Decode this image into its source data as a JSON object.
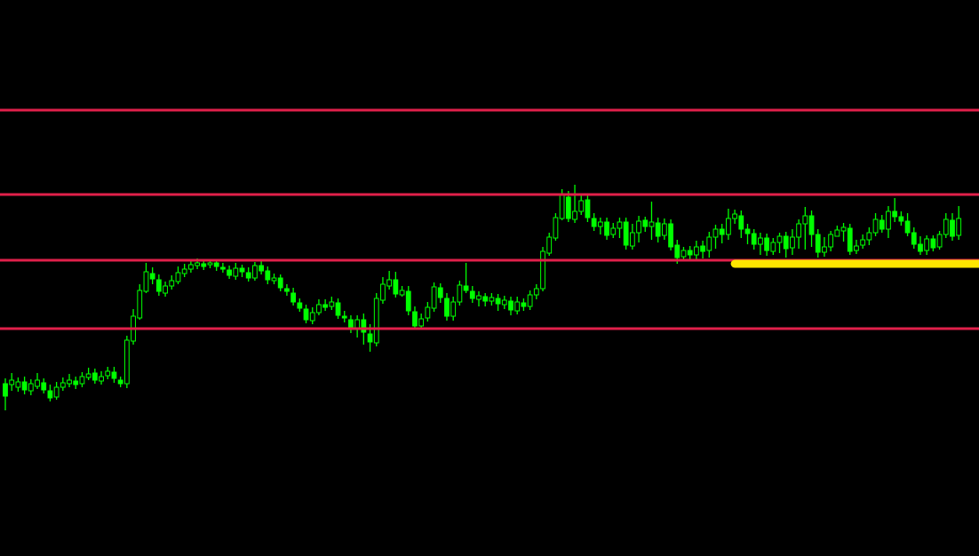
{
  "theme": {
    "background": "#000000",
    "candle_color": "#00ff00",
    "level_line_color": "#e0204a",
    "zone_color": "#ffe600"
  },
  "chart_data": {
    "type": "candlestick",
    "title": "",
    "xlabel": "",
    "ylabel": "",
    "grid": false,
    "legend": "none",
    "ylim": [
      0,
      626
    ],
    "xlim": [
      0,
      153
    ],
    "candles": [
      [
        432,
        446,
        426,
        462
      ],
      [
        433,
        428,
        420,
        440
      ],
      [
        436,
        430,
        425,
        441
      ],
      [
        430,
        439,
        424,
        444
      ],
      [
        440,
        432,
        427,
        445
      ],
      [
        435,
        428,
        420,
        438
      ],
      [
        431,
        439,
        426,
        443
      ],
      [
        440,
        448,
        433,
        452
      ],
      [
        447,
        436,
        430,
        450
      ],
      [
        436,
        431,
        425,
        440
      ],
      [
        432,
        428,
        421,
        436
      ],
      [
        429,
        433,
        424,
        438
      ],
      [
        432,
        424,
        419,
        436
      ],
      [
        425,
        421,
        414,
        428
      ],
      [
        420,
        428,
        415,
        432
      ],
      [
        429,
        424,
        418,
        433
      ],
      [
        423,
        418,
        413,
        427
      ],
      [
        419,
        426,
        413,
        431
      ],
      [
        428,
        432,
        424,
        436
      ],
      [
        432,
        383,
        378,
        437
      ],
      [
        384,
        356,
        348,
        388
      ],
      [
        358,
        327,
        320,
        360
      ],
      [
        328,
        306,
        296,
        330
      ],
      [
        308,
        314,
        301,
        320
      ],
      [
        315,
        328,
        309,
        333
      ],
      [
        330,
        322,
        317,
        334
      ],
      [
        322,
        316,
        310,
        326
      ],
      [
        317,
        307,
        300,
        320
      ],
      [
        308,
        303,
        297,
        312
      ],
      [
        303,
        298,
        293,
        307
      ],
      [
        299,
        296,
        291,
        303
      ],
      [
        297,
        300,
        293,
        304
      ],
      [
        298,
        296,
        292,
        302
      ],
      [
        296,
        300,
        292,
        305
      ],
      [
        301,
        303,
        296,
        307
      ],
      [
        304,
        310,
        299,
        314
      ],
      [
        311,
        302,
        296,
        315
      ],
      [
        302,
        306,
        298,
        312
      ],
      [
        307,
        313,
        301,
        317
      ],
      [
        313,
        299,
        295,
        316
      ],
      [
        299,
        305,
        294,
        309
      ],
      [
        305,
        315,
        300,
        320
      ],
      [
        316,
        313,
        308,
        320
      ],
      [
        313,
        324,
        309,
        328
      ],
      [
        325,
        328,
        320,
        333
      ],
      [
        330,
        340,
        324,
        344
      ],
      [
        341,
        347,
        336,
        351
      ],
      [
        348,
        360,
        343,
        364
      ],
      [
        361,
        352,
        346,
        365
      ],
      [
        352,
        343,
        337,
        355
      ],
      [
        343,
        346,
        337,
        350
      ],
      [
        345,
        340,
        334,
        349
      ],
      [
        341,
        355,
        336,
        359
      ],
      [
        356,
        358,
        350,
        363
      ],
      [
        360,
        370,
        355,
        375
      ],
      [
        371,
        360,
        355,
        380
      ],
      [
        360,
        374,
        353,
        388
      ],
      [
        376,
        385,
        365,
        396
      ],
      [
        386,
        336,
        330,
        390
      ],
      [
        338,
        320,
        312,
        342
      ],
      [
        322,
        315,
        305,
        326
      ],
      [
        315,
        331,
        306,
        335
      ],
      [
        332,
        327,
        322,
        334
      ],
      [
        328,
        350,
        322,
        355
      ],
      [
        351,
        367,
        345,
        371
      ],
      [
        367,
        359,
        353,
        370
      ],
      [
        358,
        346,
        340,
        362
      ],
      [
        347,
        323,
        318,
        351
      ],
      [
        324,
        335,
        319,
        341
      ],
      [
        336,
        356,
        330,
        361
      ],
      [
        356,
        340,
        334,
        361
      ],
      [
        340,
        321,
        316,
        344
      ],
      [
        322,
        327,
        296,
        330
      ],
      [
        328,
        336,
        322,
        341
      ],
      [
        337,
        333,
        328,
        345
      ],
      [
        334,
        339,
        330,
        345
      ],
      [
        339,
        335,
        330,
        344
      ],
      [
        336,
        342,
        331,
        350
      ],
      [
        343,
        338,
        333,
        348
      ],
      [
        339,
        349,
        334,
        355
      ],
      [
        350,
        340,
        334,
        354
      ],
      [
        341,
        345,
        336,
        350
      ],
      [
        345,
        332,
        327,
        349
      ],
      [
        332,
        325,
        320,
        337
      ],
      [
        325,
        283,
        278,
        328
      ],
      [
        285,
        267,
        262,
        288
      ],
      [
        268,
        245,
        240,
        271
      ],
      [
        246,
        220,
        213,
        248
      ],
      [
        222,
        246,
        215,
        250
      ],
      [
        247,
        238,
        208,
        251
      ],
      [
        238,
        226,
        220,
        242
      ],
      [
        225,
        245,
        219,
        250
      ],
      [
        246,
        255,
        240,
        260
      ],
      [
        255,
        250,
        245,
        264
      ],
      [
        250,
        265,
        245,
        270
      ],
      [
        264,
        257,
        251,
        268
      ],
      [
        257,
        250,
        245,
        268
      ],
      [
        250,
        276,
        245,
        281
      ],
      [
        277,
        262,
        252,
        281
      ],
      [
        262,
        249,
        243,
        273
      ],
      [
        248,
        255,
        244,
        261
      ],
      [
        255,
        250,
        227,
        270
      ],
      [
        251,
        266,
        245,
        273
      ],
      [
        265,
        252,
        246,
        270
      ],
      [
        252,
        278,
        247,
        282
      ],
      [
        276,
        290,
        270,
        297
      ],
      [
        289,
        282,
        278,
        292
      ],
      [
        282,
        287,
        277,
        292
      ],
      [
        287,
        278,
        271,
        293
      ],
      [
        277,
        283,
        271,
        291
      ],
      [
        282,
        267,
        261,
        290
      ],
      [
        267,
        258,
        253,
        280
      ],
      [
        258,
        264,
        252,
        274
      ],
      [
        264,
        246,
        235,
        270
      ],
      [
        246,
        241,
        236,
        252
      ],
      [
        243,
        258,
        237,
        268
      ],
      [
        258,
        263,
        252,
        275
      ],
      [
        263,
        275,
        258,
        281
      ],
      [
        275,
        268,
        262,
        287
      ],
      [
        268,
        282,
        263,
        288
      ],
      [
        283,
        273,
        268,
        287
      ],
      [
        273,
        266,
        262,
        285
      ],
      [
        266,
        280,
        261,
        290
      ],
      [
        279,
        267,
        258,
        287
      ],
      [
        267,
        252,
        247,
        280
      ],
      [
        252,
        243,
        233,
        281
      ],
      [
        243,
        264,
        237,
        278
      ],
      [
        264,
        284,
        258,
        290
      ],
      [
        284,
        278,
        267,
        289
      ],
      [
        278,
        264,
        260,
        283
      ],
      [
        266,
        259,
        254,
        265
      ],
      [
        260,
        256,
        251,
        272
      ],
      [
        257,
        283,
        252,
        287
      ],
      [
        282,
        277,
        270,
        286
      ],
      [
        276,
        270,
        264,
        280
      ],
      [
        270,
        262,
        256,
        276
      ],
      [
        262,
        247,
        240,
        266
      ],
      [
        248,
        258,
        242,
        262
      ],
      [
        258,
        238,
        232,
        268
      ],
      [
        238,
        244,
        223,
        250
      ],
      [
        244,
        249,
        238,
        254
      ],
      [
        249,
        262,
        240,
        266
      ],
      [
        262,
        275,
        256,
        280
      ],
      [
        275,
        283,
        266,
        287
      ],
      [
        282,
        269,
        265,
        287
      ],
      [
        269,
        279,
        265,
        283
      ],
      [
        278,
        264,
        260,
        281
      ],
      [
        264,
        247,
        240,
        268
      ],
      [
        248,
        266,
        240,
        271
      ],
      [
        265,
        246,
        232,
        270
      ]
    ],
    "horizontal_levels": [
      124,
      219,
      293,
      370
    ],
    "highlight_zone": {
      "y": 297,
      "x_from": 114,
      "x_to": 160
    }
  }
}
